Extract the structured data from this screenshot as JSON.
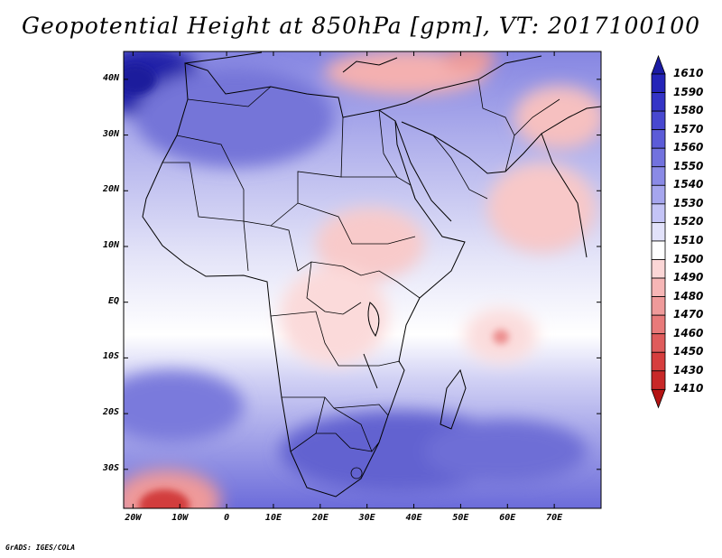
{
  "title": "Geopotential Height at 850hPa [gpm], VT: 2017100100",
  "credit": "GrADS: IGES/COLA",
  "map": {
    "lat_range": [
      -37,
      45
    ],
    "lon_range": [
      -22,
      80
    ],
    "lat_ticks": [
      {
        "label": "40N",
        "lat": 40
      },
      {
        "label": "30N",
        "lat": 30
      },
      {
        "label": "20N",
        "lat": 20
      },
      {
        "label": "10N",
        "lat": 10
      },
      {
        "label": "EQ",
        "lat": 0
      },
      {
        "label": "10S",
        "lat": -10
      },
      {
        "label": "20S",
        "lat": -20
      },
      {
        "label": "30S",
        "lat": -30
      }
    ],
    "lon_ticks": [
      {
        "label": "20W",
        "lon": -20
      },
      {
        "label": "10W",
        "lon": -10
      },
      {
        "label": "0",
        "lon": 0
      },
      {
        "label": "10E",
        "lon": 10
      },
      {
        "label": "20E",
        "lon": 20
      },
      {
        "label": "30E",
        "lon": 30
      },
      {
        "label": "40E",
        "lon": 40
      },
      {
        "label": "50E",
        "lon": 50
      },
      {
        "label": "60E",
        "lon": 60
      },
      {
        "label": "70E",
        "lon": 70
      }
    ]
  },
  "colorbar": {
    "levels": [
      "1610",
      "1590",
      "1580",
      "1570",
      "1560",
      "1550",
      "1540",
      "1530",
      "1520",
      "1510",
      "1500",
      "1490",
      "1480",
      "1470",
      "1460",
      "1450",
      "1430",
      "1410"
    ],
    "colors": [
      "#1b1ba4",
      "#2424b8",
      "#3434c6",
      "#4848d0",
      "#5c5cd8",
      "#7272de",
      "#8a8ae6",
      "#a6a6ee",
      "#c4c4f6",
      "#e2e2fa",
      "#ffffff",
      "#fbd6d6",
      "#f6b6b6",
      "#ef9a9a",
      "#e87a7a",
      "#df5c5c",
      "#d63e3e",
      "#c82828",
      "#b41414"
    ]
  },
  "field_colors": {
    "land": "#e4e4fa"
  }
}
